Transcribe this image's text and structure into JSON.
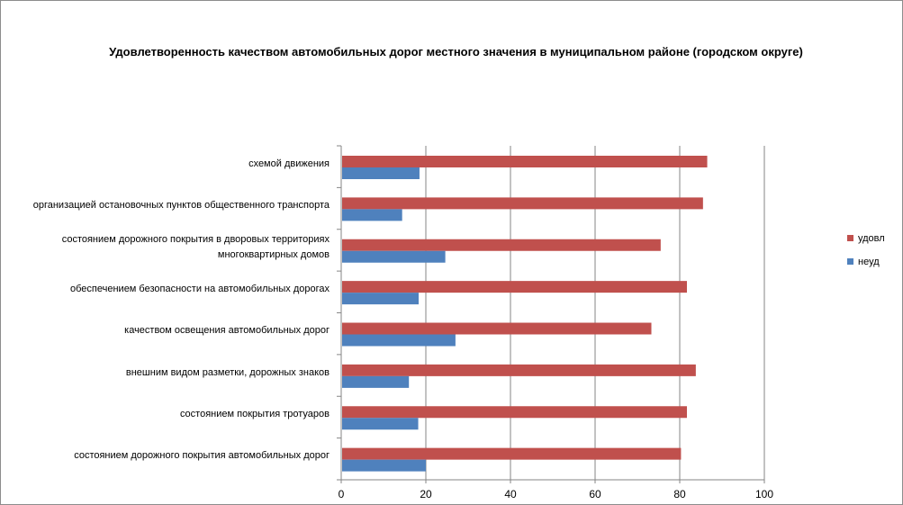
{
  "chart_data": {
    "type": "bar",
    "orientation": "horizontal",
    "title": "Удовлетворенность качеством автомобильных дорог местного значения в муниципальном районе (городском округе)",
    "xlabel": "",
    "ylabel": "",
    "xlim": [
      0,
      100
    ],
    "x_ticks": [
      "0",
      "20",
      "40",
      "60",
      "80",
      "100"
    ],
    "grid": "vertical",
    "legend_position": "right",
    "categories": [
      "схемой движения",
      "организацией остановочных пунктов общественного транспорта",
      "состоянием дорожного покрытия в дворовых территориях многоквартирных домов",
      "обеспечением  безопасности на автомобильных дорогах",
      "качеством освещения  автомобильных дорог",
      "внешним видом разметки, дорожных знаков",
      "состоянием покрытия тротуаров",
      "состоянием дорожного покрытия автомобильных дорог"
    ],
    "series": [
      {
        "name": "удовл",
        "color": "#c0504d",
        "values": [
          86.5,
          85.5,
          75.5,
          81.7,
          73.3,
          83.8,
          81.7,
          80.3
        ]
      },
      {
        "name": "неуд",
        "color": "#4f81bd",
        "values": [
          18.5,
          14.4,
          24.6,
          18.3,
          27.0,
          16.0,
          18.2,
          20.0
        ]
      }
    ]
  }
}
